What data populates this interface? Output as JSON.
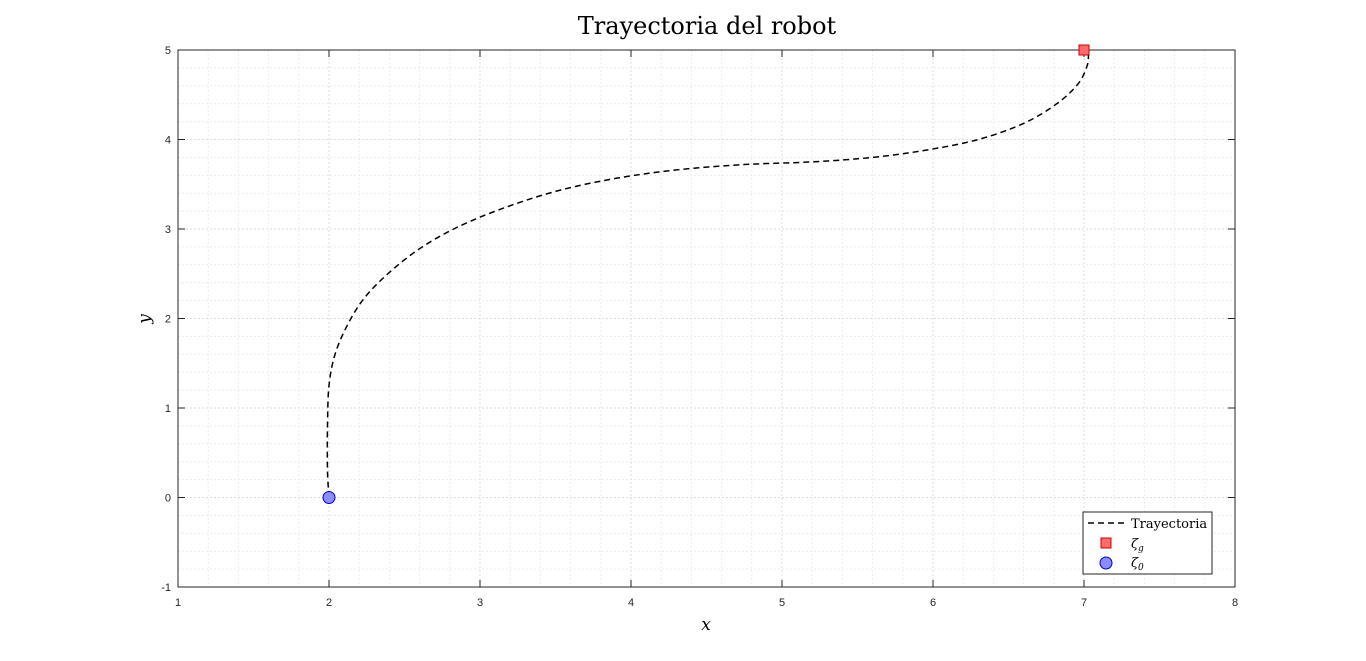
{
  "chart_data": {
    "type": "line",
    "title": "Trayectoria del robot",
    "xlabel": "x",
    "ylabel": "y",
    "xlim": [
      1,
      8
    ],
    "ylim": [
      -1,
      5
    ],
    "xticks": [
      "1",
      "2",
      "3",
      "4",
      "5",
      "6",
      "7",
      "8"
    ],
    "yticks": [
      "-1",
      "0",
      "1",
      "2",
      "3",
      "4",
      "5"
    ],
    "grid": true,
    "minor_grid": true,
    "legend_position": "bottom-right",
    "series": [
      {
        "name": "Trayectoria",
        "style": "dashed",
        "color": "#000000",
        "x": [
          2.0,
          1.99,
          1.99,
          2.0,
          2.04,
          2.12,
          2.23,
          2.39,
          2.6,
          2.85,
          3.15,
          3.5,
          3.88,
          4.3,
          4.75,
          5.2,
          5.6,
          5.95,
          6.3,
          6.6,
          6.82,
          6.96,
          7.02,
          7.03
        ],
        "y": [
          0.0,
          0.3,
          0.8,
          1.25,
          1.6,
          1.92,
          2.22,
          2.5,
          2.78,
          3.02,
          3.23,
          3.42,
          3.56,
          3.66,
          3.72,
          3.75,
          3.8,
          3.88,
          4.0,
          4.18,
          4.4,
          4.62,
          4.82,
          4.95
        ]
      }
    ],
    "markers": [
      {
        "name": "ζg",
        "symbol": "ζ",
        "subscript": "g",
        "shape": "square",
        "color": "#ff6b6b",
        "edge": "#cc0000",
        "x": 7.0,
        "y": 5.0
      },
      {
        "name": "ζ0",
        "symbol": "ζ",
        "subscript": "0",
        "shape": "circle",
        "color": "#8c8cff",
        "edge": "#0000cc",
        "x": 2.0,
        "y": 0.0
      }
    ],
    "legend_entries": {
      "line": "Trayectoria",
      "m1_sym": "ζ",
      "m1_sub": "g",
      "m2_sym": "ζ",
      "m2_sub": "0"
    }
  }
}
